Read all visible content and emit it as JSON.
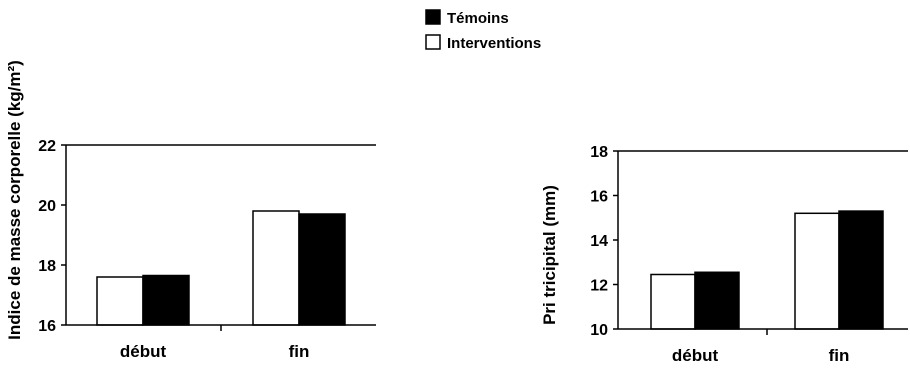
{
  "legend": {
    "items": [
      {
        "label": "Témoins",
        "color": "#000000"
      },
      {
        "label": "Interventions",
        "color": "#ffffff"
      }
    ],
    "placement": "top-center"
  },
  "chart_data": [
    {
      "type": "bar",
      "ylabel": "Indice de masse corporelle (kg/m²)",
      "categories": [
        "début",
        "fin"
      ],
      "ylim": [
        16,
        22
      ],
      "yticks": [
        "16",
        "18",
        "20",
        "22"
      ],
      "series": [
        {
          "name": "Interventions",
          "color": "#ffffff",
          "values": [
            17.6,
            19.8
          ]
        },
        {
          "name": "Témoins",
          "color": "#000000",
          "values": [
            17.65,
            19.7
          ]
        }
      ],
      "grid": false
    },
    {
      "type": "bar",
      "ylabel": "Pri tricipital (mm)",
      "categories": [
        "début",
        "fin"
      ],
      "ylim": [
        10,
        18
      ],
      "yticks": [
        "10",
        "12",
        "14",
        "16",
        "18"
      ],
      "series": [
        {
          "name": "Interventions",
          "color": "#ffffff",
          "values": [
            12.45,
            15.2
          ]
        },
        {
          "name": "Témoins",
          "color": "#000000",
          "values": [
            12.55,
            15.3
          ]
        }
      ],
      "grid": false
    }
  ]
}
